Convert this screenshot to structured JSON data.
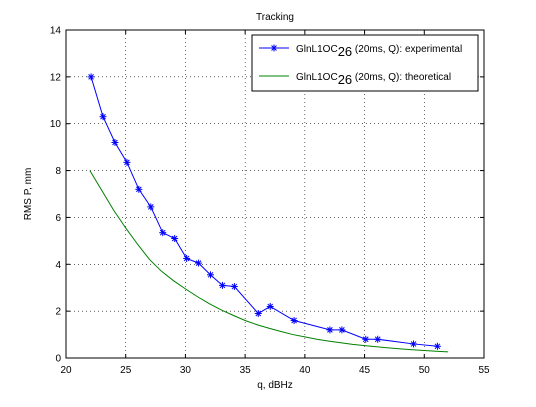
{
  "chart_data": {
    "type": "line",
    "title": "Tracking",
    "xlabel": "q, dBHz",
    "ylabel": "RMS P, mm",
    "xlim": [
      20,
      55
    ],
    "ylim": [
      0,
      14
    ],
    "xticks": [
      20,
      25,
      30,
      35,
      40,
      45,
      50,
      55
    ],
    "yticks": [
      0,
      2,
      4,
      6,
      8,
      10,
      12,
      14
    ],
    "grid": "on (dotted)",
    "legend_position": "top-right",
    "series": [
      {
        "name_parts": {
          "prefix": "GlnL1OC",
          "subscript": "26",
          "suffix": " (20ms, Q): experimental"
        },
        "color": "#0000ff",
        "marker": "asterisk",
        "x": [
          22.1,
          23.1,
          24.1,
          25.1,
          26.1,
          27.1,
          28.1,
          29.1,
          30.1,
          31.1,
          32.1,
          33.1,
          34.1,
          36.1,
          37.1,
          39.1,
          42.1,
          43.1,
          45.1,
          46.1,
          49.1,
          51.1
        ],
        "y": [
          12.0,
          10.3,
          9.2,
          8.35,
          7.2,
          6.45,
          5.35,
          5.1,
          4.25,
          4.05,
          3.55,
          3.1,
          3.05,
          1.9,
          2.2,
          1.6,
          1.2,
          1.2,
          0.8,
          0.8,
          0.6,
          0.5
        ]
      },
      {
        "name_parts": {
          "prefix": "GlnL1OC",
          "subscript": "26",
          "suffix": " (20ms, Q): theoretical"
        },
        "color": "#008000",
        "marker": "none",
        "x": [
          22,
          23,
          24,
          25,
          26,
          27,
          28,
          29,
          30,
          31,
          32,
          33,
          34,
          35,
          36,
          37,
          38,
          39,
          40,
          41,
          42,
          43,
          44,
          45,
          46,
          47,
          48,
          49,
          50,
          51,
          52
        ],
        "y": [
          8.0,
          7.15,
          6.3,
          5.55,
          4.85,
          4.2,
          3.7,
          3.3,
          2.95,
          2.62,
          2.32,
          2.05,
          1.82,
          1.6,
          1.42,
          1.27,
          1.13,
          1.0,
          0.9,
          0.8,
          0.72,
          0.65,
          0.58,
          0.53,
          0.48,
          0.43,
          0.39,
          0.35,
          0.32,
          0.29,
          0.26
        ]
      }
    ]
  }
}
